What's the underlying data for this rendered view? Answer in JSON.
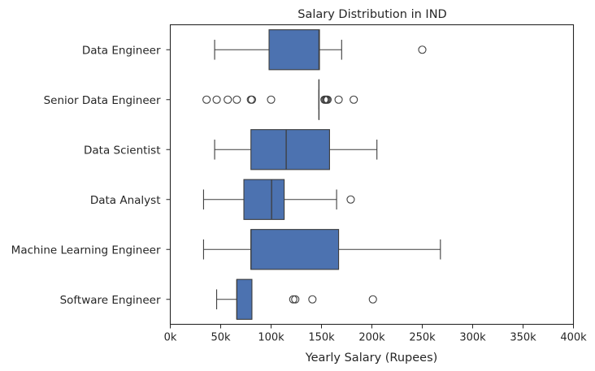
{
  "chart_data": {
    "type": "boxplot",
    "orientation": "horizontal",
    "title": "Salary Distribution in IND",
    "xlabel": "Yearly Salary (Rupees)",
    "ylabel": "",
    "xlim": [
      0,
      400000
    ],
    "xticks": [
      {
        "value": 0,
        "label": "0k"
      },
      {
        "value": 50000,
        "label": "50k"
      },
      {
        "value": 100000,
        "label": "100k"
      },
      {
        "value": 150000,
        "label": "150k"
      },
      {
        "value": 200000,
        "label": "200k"
      },
      {
        "value": 250000,
        "label": "250k"
      },
      {
        "value": 300000,
        "label": "300k"
      },
      {
        "value": 350000,
        "label": "350k"
      },
      {
        "value": 400000,
        "label": "400k"
      }
    ],
    "grid": false,
    "box_color": "#4c72b0",
    "categories": [
      {
        "label": "Data Engineer",
        "whisker_low": 44000,
        "q1": 98000,
        "median": 147500,
        "q3": 148000,
        "whisker_high": 170000,
        "outliers": [
          250000
        ]
      },
      {
        "label": "Senior Data Engineer",
        "whisker_low": 147500,
        "q1": 147500,
        "median": 147500,
        "q3": 147500,
        "whisker_high": 147500,
        "outliers": [
          36000,
          46000,
          57000,
          66000,
          80000,
          81000,
          100000,
          153000,
          154000,
          155000,
          156000,
          167000,
          182000
        ]
      },
      {
        "label": "Data Scientist",
        "whisker_low": 44000,
        "q1": 80000,
        "median": 115000,
        "q3": 158000,
        "whisker_high": 205000,
        "outliers": []
      },
      {
        "label": "Data Analyst",
        "whisker_low": 33000,
        "q1": 73000,
        "median": 100500,
        "q3": 113000,
        "whisker_high": 165000,
        "outliers": [
          179000
        ]
      },
      {
        "label": "Machine Learning Engineer",
        "whisker_low": 33000,
        "q1": 80000,
        "median": 80000,
        "q3": 167000,
        "whisker_high": 268000,
        "outliers": []
      },
      {
        "label": "Software Engineer",
        "whisker_low": 46000,
        "q1": 66000,
        "median": 66000,
        "q3": 81000,
        "whisker_high": 81000,
        "outliers": [
          122000,
          124000,
          141000,
          201000
        ]
      }
    ]
  }
}
